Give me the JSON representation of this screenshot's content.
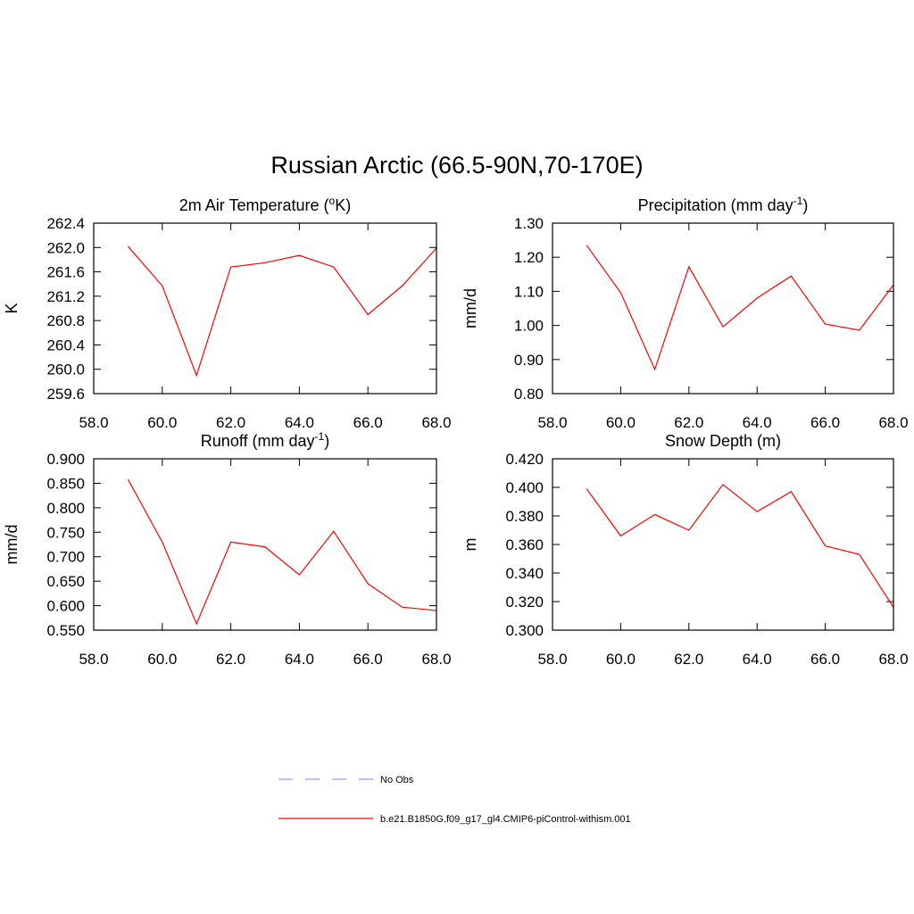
{
  "title": "Russian Arctic (66.5-90N,70-170E)",
  "legend": [
    {
      "name": "No Obs",
      "color": "#9999ff",
      "dashed": true
    },
    {
      "name": "b.e21.B1850G.f09_g17_gl4.CMIP6-piControl-withism.001",
      "color": "#ff0000",
      "dashed": false
    }
  ],
  "chart_data": [
    {
      "type": "line",
      "title": {
        "main": "2m Air Temperature (",
        "sup": "o",
        "end": "K)"
      },
      "y_label": "K",
      "x": [
        59,
        60,
        61,
        62,
        63,
        64,
        65,
        66,
        67,
        68
      ],
      "series": [
        {
          "color": "#ff0000",
          "values": [
            262.02,
            261.37,
            259.9,
            261.68,
            261.75,
            261.87,
            261.68,
            260.9,
            261.37,
            261.99
          ]
        }
      ],
      "xlim": [
        58,
        68
      ],
      "xticks": [
        {
          "value": 58,
          "label": "58.0"
        },
        {
          "value": 60,
          "label": "60.0"
        },
        {
          "value": 62,
          "label": "62.0"
        },
        {
          "value": 64,
          "label": "64.0"
        },
        {
          "value": 66,
          "label": "66.0"
        },
        {
          "value": 68,
          "label": "68.0"
        }
      ],
      "ylim": [
        259.6,
        262.4
      ],
      "yticks": [
        259.6,
        {
          "value": 260,
          "label": "260.0"
        },
        260.4,
        260.8,
        261.2,
        261.6,
        {
          "value": 262,
          "label": "262.0"
        },
        262.4
      ]
    },
    {
      "type": "line",
      "title": {
        "main": "Precipitation (mm day",
        "sup": "-1",
        "end": ")"
      },
      "y_label": "mm/d",
      "x": [
        59,
        60,
        61,
        62,
        63,
        64,
        65,
        66,
        67,
        68
      ],
      "series": [
        {
          "color": "#ff0000",
          "values": [
            1.235,
            1.096,
            0.871,
            1.172,
            0.996,
            1.08,
            1.145,
            1.004,
            0.986,
            1.119
          ]
        }
      ],
      "xlim": [
        58,
        68
      ],
      "xticks": [
        {
          "value": 58,
          "label": "58.0"
        },
        {
          "value": 60,
          "label": "60.0"
        },
        {
          "value": 62,
          "label": "62.0"
        },
        {
          "value": 64,
          "label": "64.0"
        },
        {
          "value": 66,
          "label": "66.0"
        },
        {
          "value": 68,
          "label": "68.0"
        }
      ],
      "ylim": [
        0.8,
        1.3
      ],
      "yticks": [
        {
          "value": 0.8,
          "label": "0.80"
        },
        {
          "value": 0.9,
          "label": "0.90"
        },
        {
          "value": 1.0,
          "label": "1.00"
        },
        {
          "value": 1.1,
          "label": "1.10"
        },
        {
          "value": 1.2,
          "label": "1.20"
        },
        {
          "value": 1.3,
          "label": "1.30"
        }
      ]
    },
    {
      "type": "line",
      "title": {
        "main": "Runoff (mm day",
        "sup": "-1",
        "end": ")"
      },
      "y_label": "mm/d",
      "x": [
        59,
        60,
        61,
        62,
        63,
        64,
        65,
        66,
        67,
        68
      ],
      "series": [
        {
          "color": "#ff0000",
          "values": [
            0.858,
            0.73,
            0.563,
            0.73,
            0.72,
            0.663,
            0.752,
            0.645,
            0.597,
            0.59
          ]
        }
      ],
      "xlim": [
        58,
        68
      ],
      "xticks": [
        {
          "value": 58,
          "label": "58.0"
        },
        {
          "value": 60,
          "label": "60.0"
        },
        {
          "value": 62,
          "label": "62.0"
        },
        {
          "value": 64,
          "label": "64.0"
        },
        {
          "value": 66,
          "label": "66.0"
        },
        {
          "value": 68,
          "label": "68.0"
        }
      ],
      "ylim": [
        0.55,
        0.9
      ],
      "yticks": [
        {
          "value": 0.55,
          "label": "0.550"
        },
        {
          "value": 0.6,
          "label": "0.600"
        },
        {
          "value": 0.65,
          "label": "0.650"
        },
        {
          "value": 0.7,
          "label": "0.700"
        },
        {
          "value": 0.75,
          "label": "0.750"
        },
        {
          "value": 0.8,
          "label": "0.800"
        },
        {
          "value": 0.85,
          "label": "0.850"
        },
        {
          "value": 0.9,
          "label": "0.900"
        }
      ]
    },
    {
      "type": "line",
      "title": {
        "main": "Snow Depth (m)"
      },
      "y_label": "m",
      "x": [
        59,
        60,
        61,
        62,
        63,
        64,
        65,
        66,
        67,
        68
      ],
      "series": [
        {
          "color": "#ff0000",
          "values": [
            0.399,
            0.366,
            0.381,
            0.37,
            0.402,
            0.383,
            0.397,
            0.359,
            0.353,
            0.316
          ]
        }
      ],
      "xlim": [
        58,
        68
      ],
      "xticks": [
        {
          "value": 58,
          "label": "58.0"
        },
        {
          "value": 60,
          "label": "60.0"
        },
        {
          "value": 62,
          "label": "62.0"
        },
        {
          "value": 64,
          "label": "64.0"
        },
        {
          "value": 66,
          "label": "66.0"
        },
        {
          "value": 68,
          "label": "68.0"
        }
      ],
      "ylim": [
        0.3,
        0.42
      ],
      "yticks": [
        {
          "value": 0.3,
          "label": "0.300"
        },
        {
          "value": 0.32,
          "label": "0.320"
        },
        {
          "value": 0.34,
          "label": "0.340"
        },
        {
          "value": 0.36,
          "label": "0.360"
        },
        {
          "value": 0.38,
          "label": "0.380"
        },
        {
          "value": 0.4,
          "label": "0.400"
        },
        {
          "value": 0.42,
          "label": "0.420"
        }
      ]
    }
  ]
}
